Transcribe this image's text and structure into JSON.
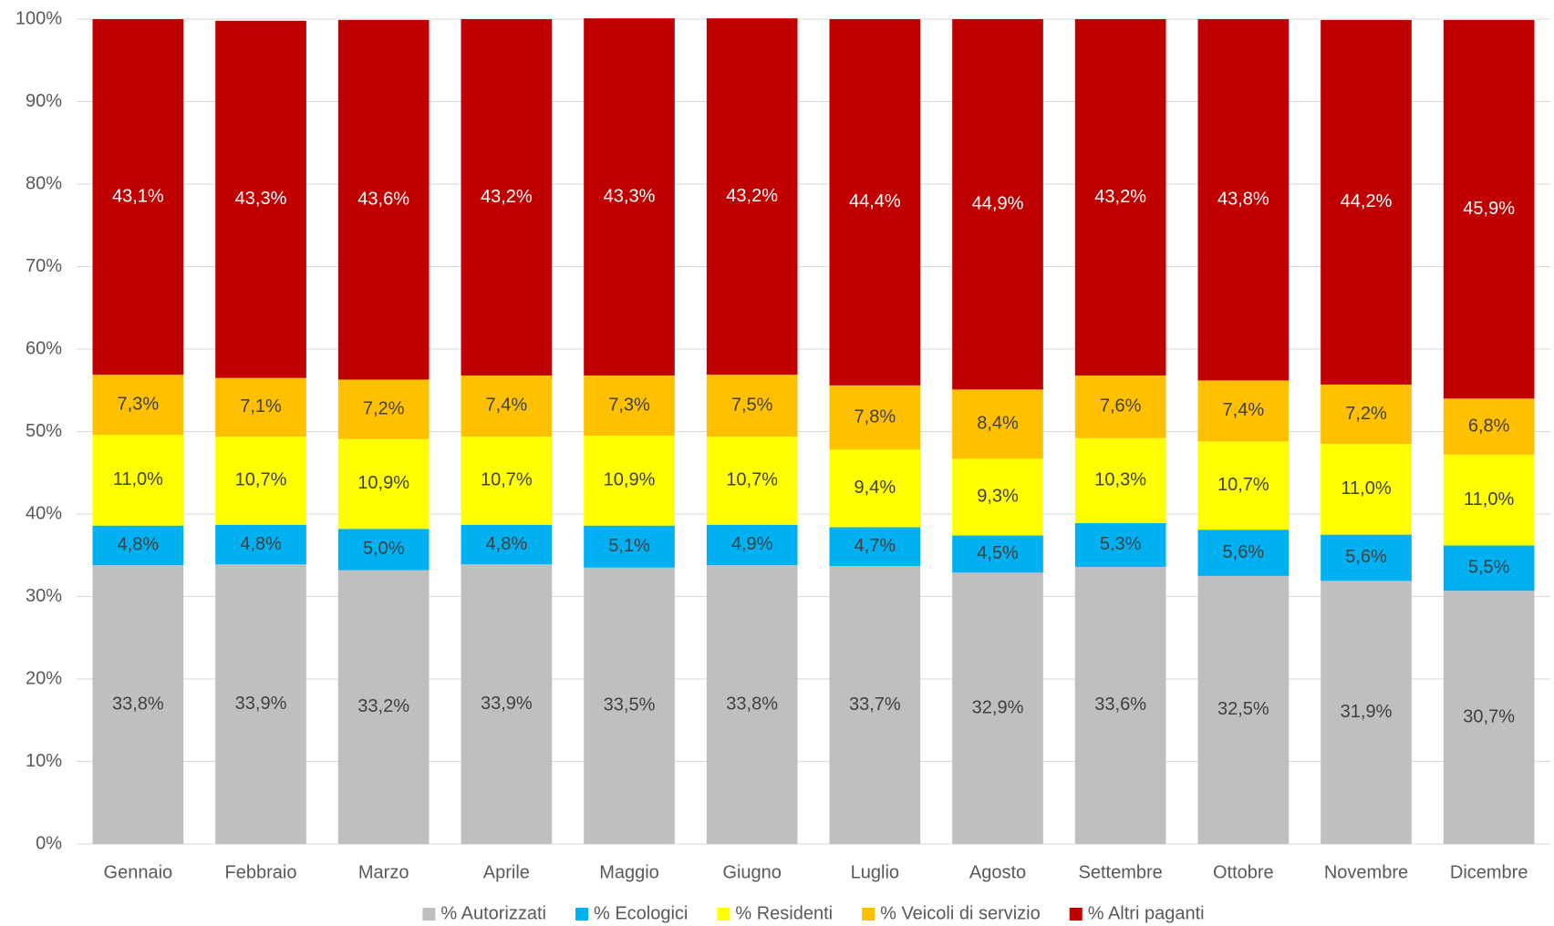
{
  "chart_data": {
    "type": "bar",
    "stacked": true,
    "categories": [
      "Gennaio",
      "Febbraio",
      "Marzo",
      "Aprile",
      "Maggio",
      "Giugno",
      "Luglio",
      "Agosto",
      "Settembre",
      "Ottobre",
      "Novembre",
      "Dicembre"
    ],
    "series": [
      {
        "name": "% Autorizzati",
        "color": "#bfbfbf",
        "values": [
          33.8,
          33.9,
          33.2,
          33.9,
          33.5,
          33.8,
          33.7,
          32.9,
          33.6,
          32.5,
          31.9,
          30.7
        ],
        "value_labels": [
          "33,8%",
          "33,9%",
          "33,2%",
          "33,9%",
          "33,5%",
          "33,8%",
          "33,7%",
          "32,9%",
          "33,6%",
          "32,5%",
          "31,9%",
          "30,7%"
        ]
      },
      {
        "name": "% Ecologici",
        "color": "#00b0f0",
        "values": [
          4.8,
          4.8,
          5.0,
          4.8,
          5.1,
          4.9,
          4.7,
          4.5,
          5.3,
          5.6,
          5.6,
          5.5
        ],
        "value_labels": [
          "4,8%",
          "4,8%",
          "5,0%",
          "4,8%",
          "5,1%",
          "4,9%",
          "4,7%",
          "4,5%",
          "5,3%",
          "5,6%",
          "5,6%",
          "5,5%"
        ]
      },
      {
        "name": "% Residenti",
        "color": "#ffff00",
        "values": [
          11.0,
          10.7,
          10.9,
          10.7,
          10.9,
          10.7,
          9.4,
          9.3,
          10.3,
          10.7,
          11.0,
          11.0
        ],
        "value_labels": [
          "11,0%",
          "10,7%",
          "10,9%",
          "10,7%",
          "10,9%",
          "10,7%",
          "9,4%",
          "9,3%",
          "10,3%",
          "10,7%",
          "11,0%",
          "11,0%"
        ]
      },
      {
        "name": "% Veicoli di servizio",
        "color": "#ffc000",
        "values": [
          7.3,
          7.1,
          7.2,
          7.4,
          7.3,
          7.5,
          7.8,
          8.4,
          7.6,
          7.4,
          7.2,
          6.8
        ],
        "value_labels": [
          "7,3%",
          "7,1%",
          "7,2%",
          "7,4%",
          "7,3%",
          "7,5%",
          "7,8%",
          "8,4%",
          "7,6%",
          "7,4%",
          "7,2%",
          "6,8%"
        ]
      },
      {
        "name": "% Altri paganti",
        "color": "#c00000",
        "values": [
          43.1,
          43.3,
          43.6,
          43.2,
          43.3,
          43.2,
          44.4,
          44.9,
          43.2,
          43.8,
          44.2,
          45.9
        ],
        "value_labels": [
          "43,1%",
          "43,3%",
          "43,6%",
          "43,2%",
          "43,3%",
          "43,2%",
          "44,4%",
          "44,9%",
          "43,2%",
          "43,8%",
          "44,2%",
          "45,9%"
        ]
      }
    ],
    "ylim": [
      0,
      100
    ],
    "yticks": [
      {
        "value": 0,
        "label": "0%"
      },
      {
        "value": 10,
        "label": "10%"
      },
      {
        "value": 20,
        "label": "20%"
      },
      {
        "value": 30,
        "label": "30%"
      },
      {
        "value": 40,
        "label": "40%"
      },
      {
        "value": 50,
        "label": "50%"
      },
      {
        "value": 60,
        "label": "60%"
      },
      {
        "value": 70,
        "label": "70%"
      },
      {
        "value": 80,
        "label": "80%"
      },
      {
        "value": 90,
        "label": "90%"
      },
      {
        "value": 100,
        "label": "100%"
      }
    ],
    "grid": true,
    "legend": "bottom"
  }
}
